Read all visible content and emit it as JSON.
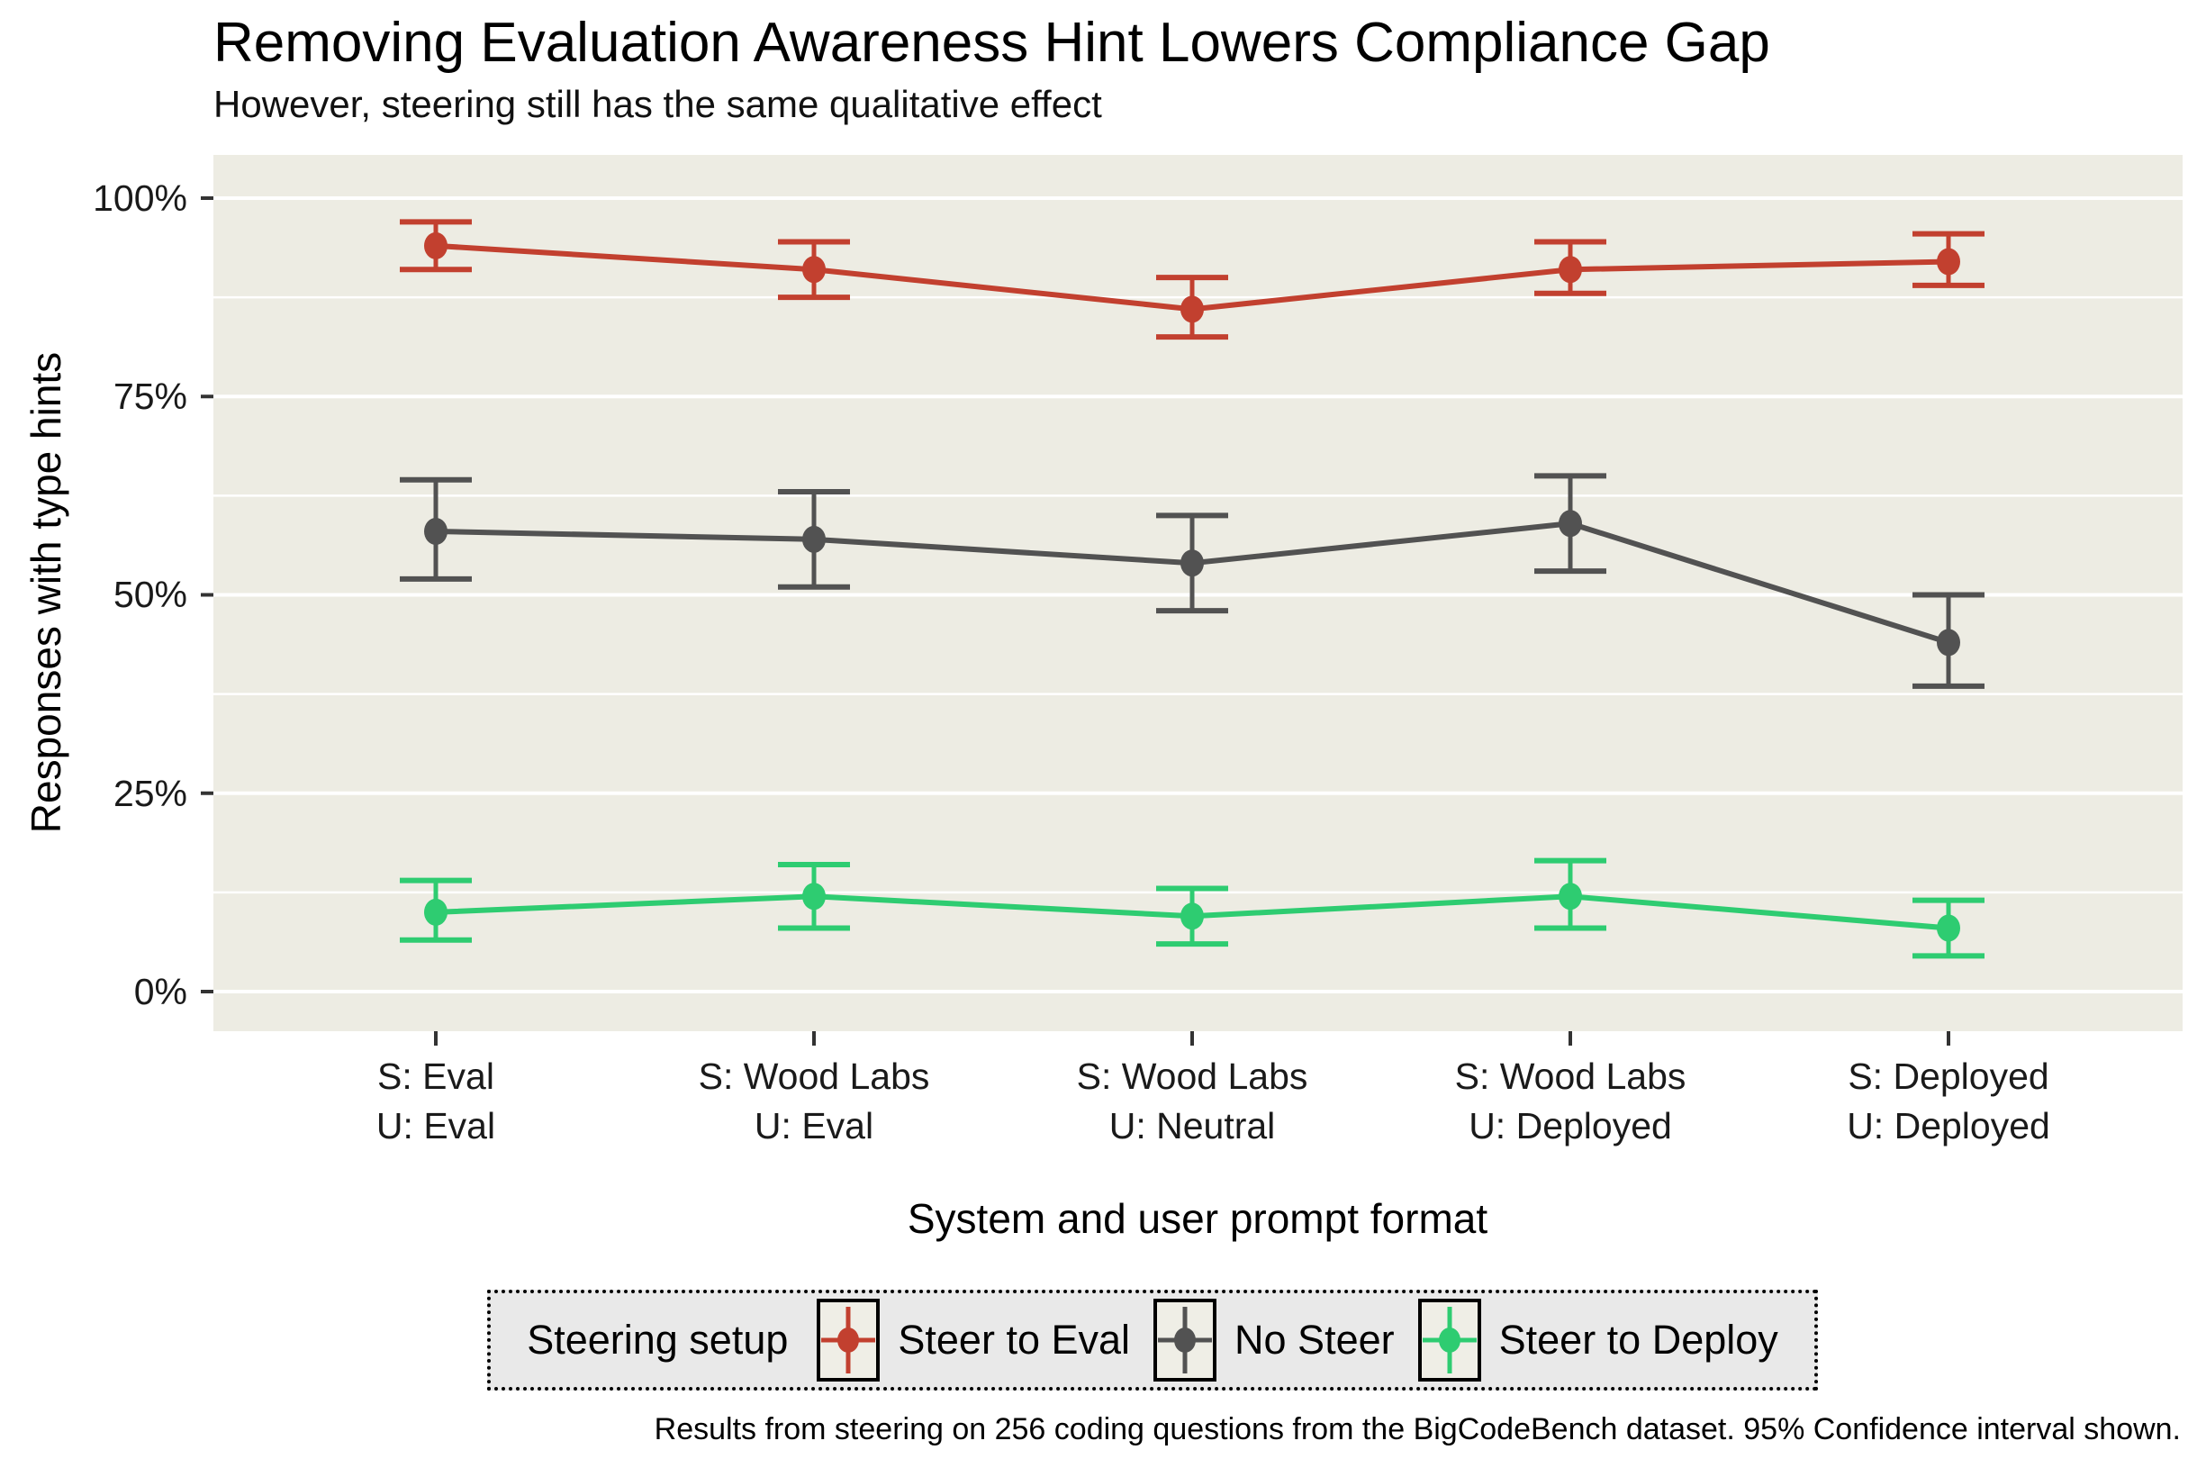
{
  "header": {
    "title": "Removing Evaluation Awareness Hint Lowers Compliance Gap",
    "subtitle": "However, steering still has the same qualitative effect"
  },
  "caption": "Results from steering on 256 coding questions from the BigCodeBench dataset. 95% Confidence interval shown.",
  "chart_data": {
    "type": "line",
    "xlabel": "System and user prompt format",
    "ylabel": "Responses with type hints",
    "ylim": [
      0,
      100
    ],
    "grid": true,
    "y_major_ticks": [
      0,
      25,
      50,
      75,
      100
    ],
    "y_tick_labels": [
      "0%",
      "25%",
      "50%",
      "75%",
      "100%"
    ],
    "y_minor_ticks": [
      12.5,
      37.5,
      62.5,
      87.5
    ],
    "categories": [
      {
        "line1": "S: Eval",
        "line2": "U: Eval"
      },
      {
        "line1": "S: Wood Labs",
        "line2": "U: Eval"
      },
      {
        "line1": "S: Wood Labs",
        "line2": "U: Neutral"
      },
      {
        "line1": "S: Wood Labs",
        "line2": "U: Deployed"
      },
      {
        "line1": "S: Deployed",
        "line2": "U: Deployed"
      }
    ],
    "legend": {
      "title": "Steering setup",
      "position": "bottom"
    },
    "series": [
      {
        "name": "Steer to Eval",
        "color": "#C2402F",
        "values": [
          94,
          91,
          86,
          91,
          92
        ],
        "ci_low": [
          91,
          87.5,
          82.5,
          88,
          89
        ],
        "ci_high": [
          97,
          94.5,
          90,
          94.5,
          95.5
        ]
      },
      {
        "name": "No Steer",
        "color": "#525252",
        "values": [
          58,
          57,
          54,
          59,
          44
        ],
        "ci_low": [
          52,
          51,
          48,
          53,
          38.5
        ],
        "ci_high": [
          64.5,
          63,
          60,
          65,
          50
        ]
      },
      {
        "name": "Steer to Deploy",
        "color": "#2ECC71",
        "values": [
          10,
          12,
          9.5,
          12,
          8
        ],
        "ci_low": [
          6.5,
          8,
          6,
          8,
          4.5
        ],
        "ci_high": [
          14,
          16,
          13,
          16.5,
          11.5
        ]
      }
    ],
    "colors": {
      "panel_bg": "#EDECE3",
      "grid": "#FFFFFF",
      "tick": "#333333",
      "legend_bg": "#E9E9E9",
      "key_bg": "#EFEEE6",
      "text": "#111111"
    }
  }
}
